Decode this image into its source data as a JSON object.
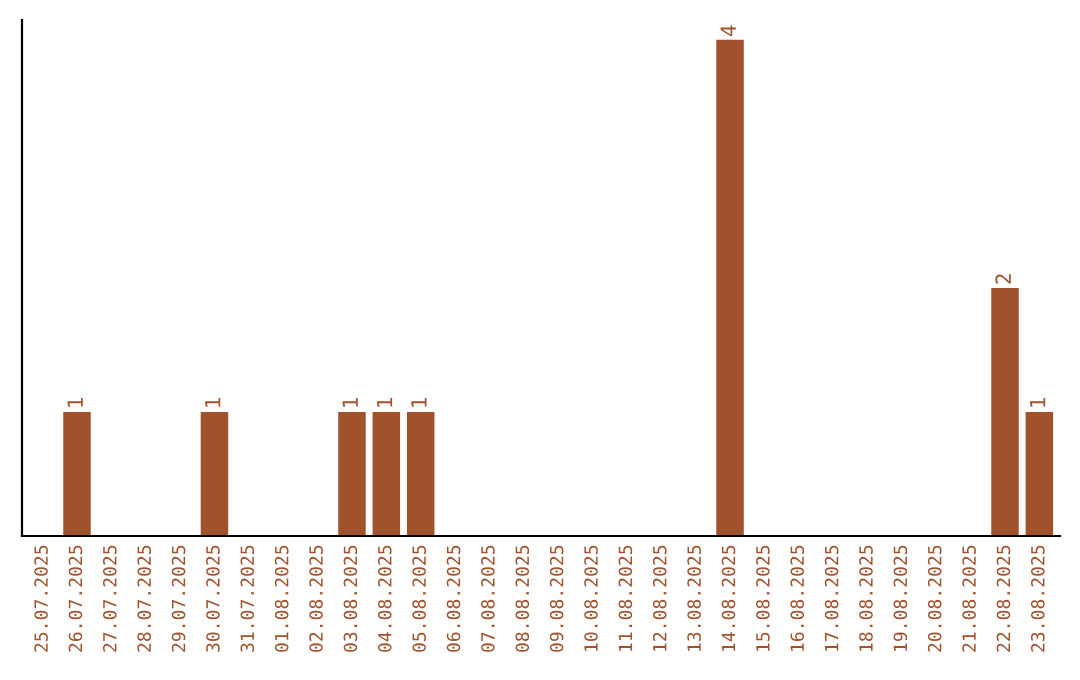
{
  "chart_data": {
    "type": "bar",
    "categories": [
      "25.07.2025",
      "26.07.2025",
      "27.07.2025",
      "28.07.2025",
      "29.07.2025",
      "30.07.2025",
      "31.07.2025",
      "01.08.2025",
      "02.08.2025",
      "03.08.2025",
      "04.08.2025",
      "05.08.2025",
      "06.08.2025",
      "07.08.2025",
      "08.08.2025",
      "09.08.2025",
      "10.08.2025",
      "11.08.2025",
      "12.08.2025",
      "13.08.2025",
      "14.08.2025",
      "15.08.2025",
      "16.08.2025",
      "17.08.2025",
      "18.08.2025",
      "19.08.2025",
      "20.08.2025",
      "21.08.2025",
      "22.08.2025",
      "23.08.2025"
    ],
    "values": [
      0,
      1,
      0,
      0,
      0,
      1,
      0,
      0,
      0,
      1,
      1,
      1,
      0,
      0,
      0,
      0,
      0,
      0,
      0,
      0,
      4,
      0,
      0,
      0,
      0,
      0,
      0,
      0,
      2,
      1
    ],
    "value_labels": [
      null,
      "1",
      null,
      null,
      null,
      "1",
      null,
      null,
      null,
      "1",
      "1",
      "1",
      null,
      null,
      null,
      null,
      null,
      null,
      null,
      null,
      "4",
      null,
      null,
      null,
      null,
      null,
      null,
      null,
      "2",
      "1"
    ],
    "color": "#a0522d",
    "tick_labels": "x",
    "grid": false,
    "legend": false
  }
}
